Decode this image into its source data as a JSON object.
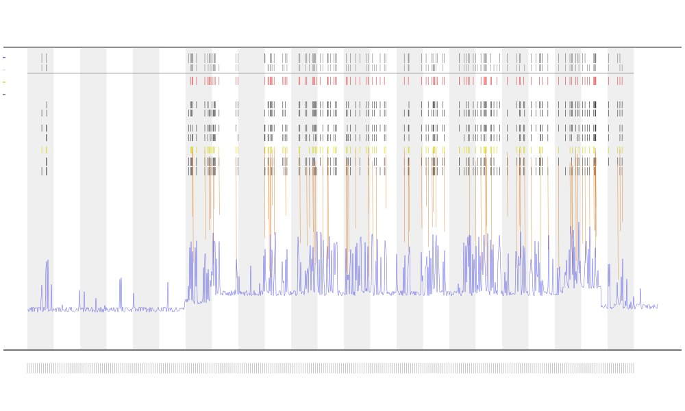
{
  "header": {
    "title": "",
    "subtitle_1": "",
    "subtitle_2": ""
  },
  "legend": {
    "entries": [
      {
        "name": "",
        "color": "#1f1fd6"
      },
      {
        "name": "",
        "color": "#d9d9d9"
      },
      {
        "name": "",
        "color": "#e8c300"
      },
      {
        "name": "",
        "color": "#444444"
      }
    ]
  },
  "chart_data": {
    "type": "line",
    "title": "",
    "xlabel": "",
    "ylabel": "",
    "grid": false,
    "legend_position": "top-left",
    "x_ticks_count": 300,
    "shaded_bands_count": 12,
    "series": [
      {
        "color": "#2a2ae0",
        "role": "trace",
        "baseline_segments": [
          {
            "x_range": [
              0,
              0.25
            ],
            "level": 0.12
          },
          {
            "x_range": [
              0.25,
              0.29
            ],
            "level": 0.2
          },
          {
            "x_range": [
              0.29,
              0.85
            ],
            "level": 0.28
          },
          {
            "x_range": [
              0.85,
              0.91
            ],
            "level": 0.35
          },
          {
            "x_range": [
              0.91,
              1.0
            ],
            "level": 0.15
          }
        ]
      },
      {
        "color": "#e07a1a",
        "role": "event-spikes"
      },
      {
        "color": "#d4d400",
        "role": "event-band"
      },
      {
        "color": "#e04040",
        "role": "marker-row"
      },
      {
        "color": "#333333",
        "role": "raster-rows"
      }
    ],
    "track_labels": [
      "",
      ""
    ]
  },
  "colors": {
    "band": "#efefef",
    "axis": "#222222",
    "trace": "#2a2ae0",
    "spike_orange": "#e07a1a",
    "spike_yellow": "#d4d400",
    "marker_red": "#e04040",
    "raster": "#333333"
  }
}
